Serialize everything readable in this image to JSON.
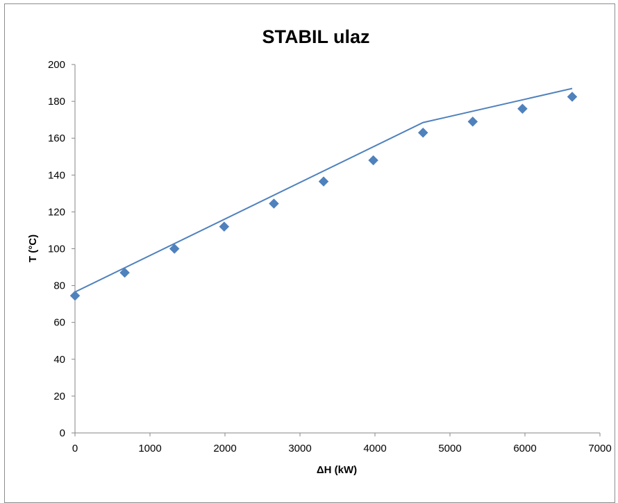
{
  "chart_data": {
    "type": "scatter",
    "title": "STABIL ulaz",
    "xlabel": "ΔH (kW)",
    "ylabel": "T (°C)",
    "xlim": [
      0,
      7000
    ],
    "ylim": [
      0,
      200
    ],
    "xticks": [
      "0",
      "1000",
      "2000",
      "3000",
      "4000",
      "5000",
      "6000",
      "7000"
    ],
    "yticks": [
      "0",
      "20",
      "40",
      "60",
      "80",
      "100",
      "120",
      "140",
      "160",
      "180",
      "200"
    ],
    "grid": false,
    "legend": "none",
    "series": [
      {
        "kind": "markers",
        "marker": "diamond",
        "color": "#4f81bd",
        "x": [
          0,
          663,
          1326,
          1989,
          2652,
          3315,
          3978,
          4641,
          5304,
          5967,
          6630
        ],
        "y": [
          74.5,
          87,
          100,
          112,
          124.5,
          136.5,
          148,
          163,
          169,
          176,
          182.5
        ]
      },
      {
        "kind": "line",
        "color": "#4f81bd",
        "x": [
          0,
          4641,
          6630
        ],
        "y": [
          76.5,
          168.5,
          187
        ]
      }
    ]
  }
}
